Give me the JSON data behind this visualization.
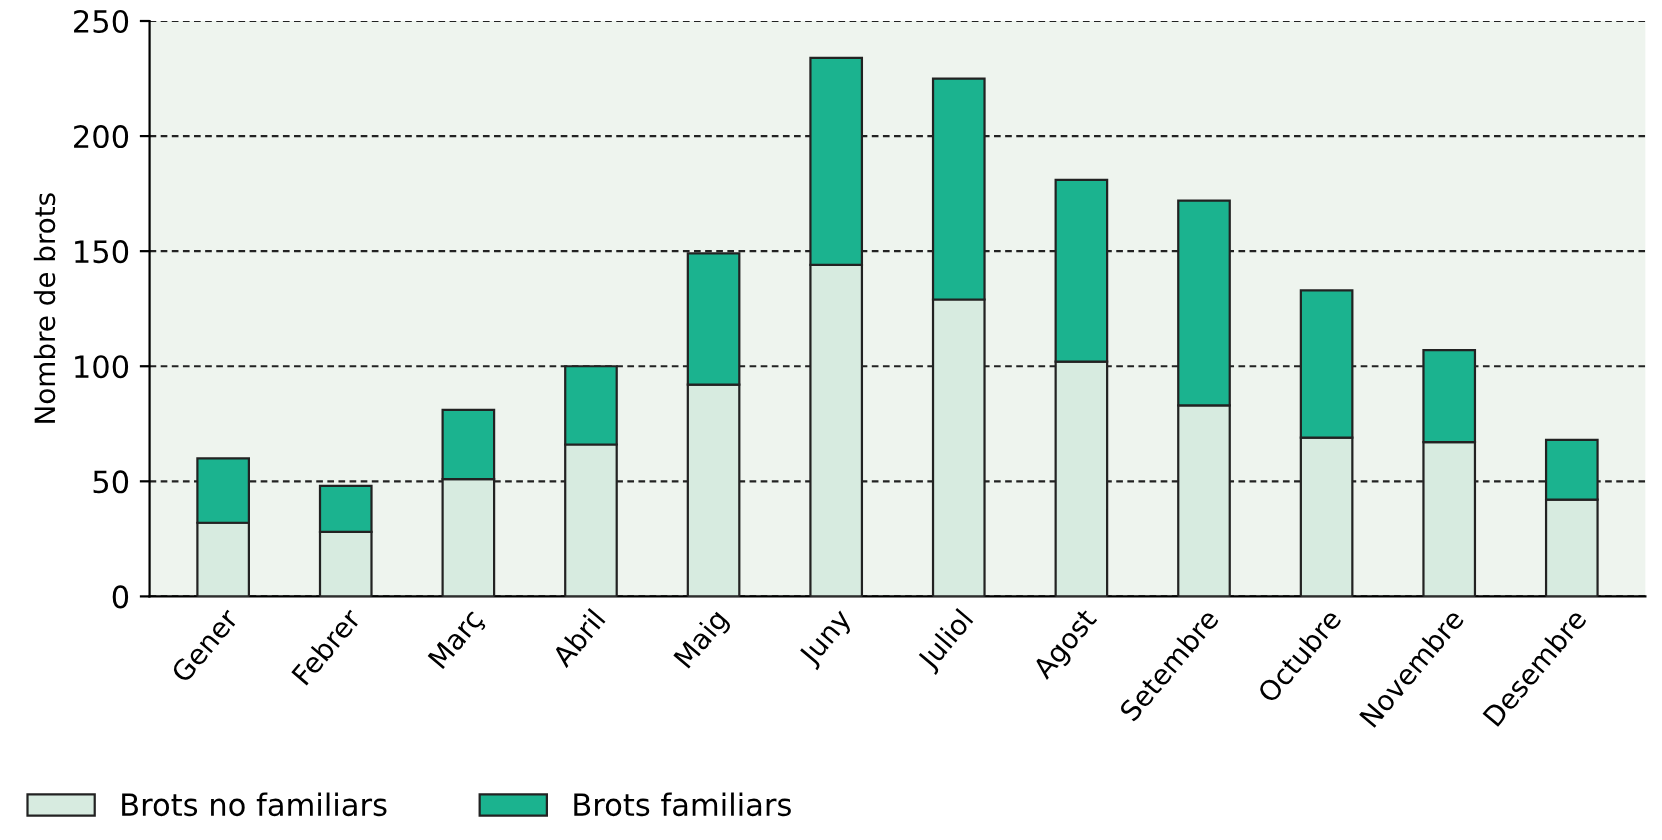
{
  "chart_data": {
    "type": "bar",
    "stacked": true,
    "ylabel": "Nombre de brots",
    "categories": [
      "Gener",
      "Febrer",
      "Març",
      "Abril",
      "Maig",
      "Juny",
      "Juliol",
      "Agost",
      "Setembre",
      "Octubre",
      "Novembre",
      "Desembre"
    ],
    "series": [
      {
        "name": "Brots no familiars",
        "color": "#d7ebe0",
        "values": [
          32,
          28,
          51,
          66,
          92,
          144,
          129,
          102,
          83,
          69,
          67,
          42
        ]
      },
      {
        "name": "Brots familiars",
        "color": "#1bb38f",
        "values": [
          28,
          20,
          30,
          34,
          57,
          90,
          96,
          79,
          89,
          64,
          40,
          26
        ]
      }
    ],
    "ylim": [
      0,
      250
    ],
    "yticks": [
      0,
      50,
      100,
      150,
      200,
      250
    ],
    "grid": "y",
    "legend": "bottom left"
  }
}
